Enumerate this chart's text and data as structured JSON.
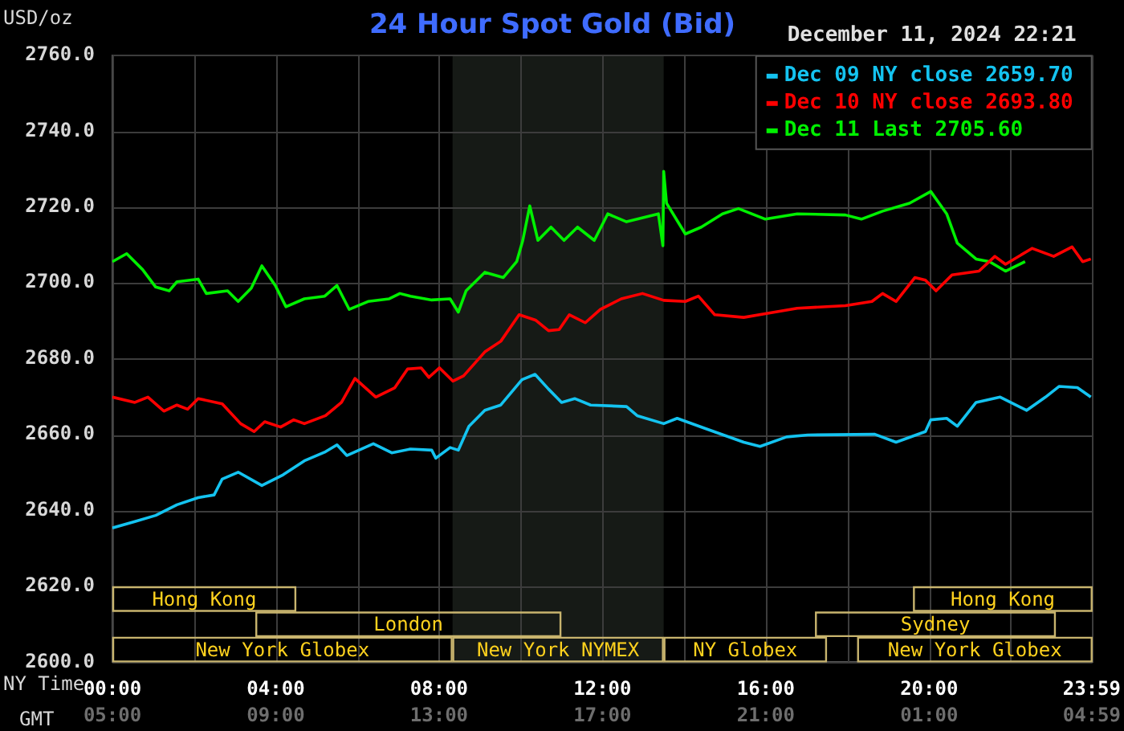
{
  "chart_data": {
    "type": "line",
    "title": "24 Hour Spot Gold (Bid)",
    "subtitle": "December 11, 2024 22:21",
    "ylabel": "USD/oz",
    "xlabel": "NY Time",
    "x2label": "GMT",
    "xlim": [
      0,
      24
    ],
    "ylim": [
      2600,
      2760
    ],
    "xticks": [
      {
        "value": 0,
        "label": "00:00"
      },
      {
        "value": 2,
        "label": null
      },
      {
        "value": 4,
        "label": "04:00"
      },
      {
        "value": 6,
        "label": null
      },
      {
        "value": 8,
        "label": "08:00"
      },
      {
        "value": 10,
        "label": null
      },
      {
        "value": 12,
        "label": "12:00"
      },
      {
        "value": 14,
        "label": null
      },
      {
        "value": 16,
        "label": "16:00"
      },
      {
        "value": 18,
        "label": null
      },
      {
        "value": 20,
        "label": "20:00"
      },
      {
        "value": 22,
        "label": null
      },
      {
        "value": 23.983,
        "label": "23:59"
      }
    ],
    "x2lim": [
      "2024-12-11T05:00",
      "2024-12-12T05:00"
    ],
    "x2ticks": [
      {
        "value": "2024-12-11T05:00",
        "label": "05:00"
      },
      {
        "value": "2024-12-11T09:00",
        "label": "09:00"
      },
      {
        "value": "2024-12-11T13:00",
        "label": "13:00"
      },
      {
        "value": "2024-12-11T17:00",
        "label": "17:00"
      },
      {
        "value": "2024-12-11T21:00",
        "label": "21:00"
      },
      {
        "value": "2024-12-12T01:00",
        "label": "01:00"
      },
      {
        "value": "2024-12-12T04:59",
        "label": "04:59"
      }
    ],
    "yticks": [
      {
        "value": 2600,
        "label": "2600.0"
      },
      {
        "value": 2620,
        "label": "2620.0"
      },
      {
        "value": 2640,
        "label": "2640.0"
      },
      {
        "value": 2660,
        "label": "2660.0"
      },
      {
        "value": 2680,
        "label": "2680.0"
      },
      {
        "value": 2700,
        "label": "2700.0"
      },
      {
        "value": 2720,
        "label": "2720.0"
      },
      {
        "value": 2740,
        "label": "2740.0"
      },
      {
        "value": 2760,
        "label": "2760.0"
      }
    ],
    "grid": true,
    "legend": "top right",
    "line_style": "solid",
    "bands": [
      {
        "axis": "x",
        "from": 8.33,
        "to": 13.5,
        "color": "#161a16"
      }
    ],
    "annotations": [
      "New York Globex",
      "New York NYMEX",
      "NY Globex",
      "New York Globex",
      "London",
      "Sydney",
      "Hong Kong",
      "Hong Kong"
    ],
    "series": [
      {
        "name": "Dec 09 NY close 2659.70",
        "color": "#14c3f0",
        "x": [
          0,
          0.55,
          1.06,
          1.58,
          2.1,
          2.49,
          2.69,
          3.08,
          3.66,
          4.18,
          4.7,
          5.22,
          5.5,
          5.74,
          6.39,
          6.84,
          7.3,
          7.82,
          7.92,
          8.27,
          8.47,
          8.73,
          9.12,
          9.51,
          10.03,
          10.35,
          10.68,
          11,
          11.32,
          11.71,
          12.59,
          12.85,
          13.5,
          13.83,
          14.55,
          15.46,
          15.86,
          16.51,
          17.03,
          18.67,
          19.19,
          19.91,
          20.04,
          20.43,
          20.69,
          21.15,
          21.74,
          22.39,
          22.85,
          23.18,
          23.63,
          23.96
        ],
        "values": [
          2635.4,
          2637.1,
          2638.7,
          2641.5,
          2643.4,
          2644.1,
          2648.3,
          2650.1,
          2646.6,
          2649.4,
          2653.1,
          2655.5,
          2657.3,
          2654.5,
          2657.6,
          2655.2,
          2656.2,
          2655.9,
          2653.8,
          2656.6,
          2655.9,
          2662.2,
          2666.4,
          2667.8,
          2674.5,
          2675.9,
          2672,
          2668.5,
          2669.5,
          2667.8,
          2667.4,
          2665,
          2662.9,
          2664.3,
          2661.5,
          2658,
          2656.9,
          2659.4,
          2659.9,
          2660.1,
          2658,
          2660.8,
          2663.9,
          2664.3,
          2662.2,
          2668.5,
          2669.9,
          2666.4,
          2669.9,
          2672.7,
          2672.4,
          2669.9
        ]
      },
      {
        "name": "Dec 10 NY close 2693.80",
        "color": "#ff0000",
        "x": [
          0,
          0.55,
          0.87,
          1.26,
          1.58,
          1.84,
          2.1,
          2.69,
          3.14,
          3.47,
          3.73,
          4.12,
          4.44,
          4.7,
          5.22,
          5.61,
          5.94,
          6.45,
          6.91,
          7.23,
          7.56,
          7.75,
          8.01,
          8.34,
          8.6,
          9.12,
          9.51,
          9.96,
          10.36,
          10.68,
          10.94,
          11.19,
          11.58,
          11.95,
          12.46,
          12.98,
          13.5,
          14.03,
          14.35,
          14.75,
          15.46,
          15.99,
          16.77,
          17.95,
          18.6,
          18.86,
          19.19,
          19.65,
          19.91,
          20.17,
          20.56,
          21.22,
          21.61,
          21.87,
          22.52,
          23.05,
          23.5,
          23.76,
          23.96
        ],
        "values": [
          2669.9,
          2668.5,
          2669.9,
          2666.2,
          2667.8,
          2666.7,
          2669.5,
          2668.1,
          2662.9,
          2660.8,
          2663.4,
          2662,
          2663.9,
          2662.9,
          2665,
          2668.5,
          2674.8,
          2669.9,
          2672.3,
          2677.3,
          2677.6,
          2675.1,
          2677.6,
          2674.1,
          2675.5,
          2681.8,
          2684.6,
          2691.6,
          2690.2,
          2687.4,
          2687.7,
          2691.6,
          2689.5,
          2693,
          2695.8,
          2697.2,
          2695.4,
          2695.1,
          2696.5,
          2691.6,
          2690.9,
          2691.9,
          2693.3,
          2694,
          2695.1,
          2697.2,
          2695.1,
          2701.4,
          2700.7,
          2697.9,
          2702.1,
          2703.1,
          2707,
          2704.9,
          2709.1,
          2707,
          2709.5,
          2705.6,
          2706.3
        ]
      },
      {
        "name": "Dec 11 Last 2705.60",
        "color": "#00f000",
        "x": [
          0,
          0.35,
          0.74,
          1.06,
          1.39,
          1.58,
          2.1,
          2.3,
          2.82,
          3.08,
          3.4,
          3.66,
          3.99,
          4.25,
          4.7,
          5.2,
          5.5,
          5.8,
          6.26,
          6.78,
          7.04,
          7.3,
          7.82,
          8.27,
          8.47,
          8.66,
          9.12,
          9.57,
          9.9,
          10.05,
          10.22,
          10.42,
          10.74,
          11.06,
          11.39,
          11.8,
          12.13,
          12.59,
          13.37,
          13.48,
          13.5,
          13.57,
          14.03,
          14.42,
          14.94,
          15.33,
          15.99,
          16.77,
          17.95,
          18.34,
          18.86,
          19.52,
          20.04,
          20.43,
          20.69,
          21.15,
          21.48,
          21.87,
          22.35
        ],
        "values": [
          2705.6,
          2707.7,
          2703.5,
          2698.9,
          2697.9,
          2700.3,
          2701,
          2697.2,
          2697.9,
          2695.1,
          2698.6,
          2704.5,
          2699.3,
          2693.7,
          2695.8,
          2696.5,
          2699.3,
          2693,
          2695.1,
          2695.8,
          2697.2,
          2696.5,
          2695.5,
          2695.8,
          2692.3,
          2697.9,
          2702.8,
          2701.4,
          2705.6,
          2711.2,
          2720.3,
          2711.2,
          2714.7,
          2711.2,
          2714.7,
          2711.2,
          2718.2,
          2716.1,
          2718.2,
          2709.8,
          2729.4,
          2721,
          2712.9,
          2714.7,
          2718.2,
          2719.6,
          2716.8,
          2718.2,
          2717.9,
          2716.8,
          2718.9,
          2721,
          2724.1,
          2718.2,
          2710.5,
          2706.3,
          2705.6,
          2703.1,
          2705.6
        ]
      }
    ]
  }
}
